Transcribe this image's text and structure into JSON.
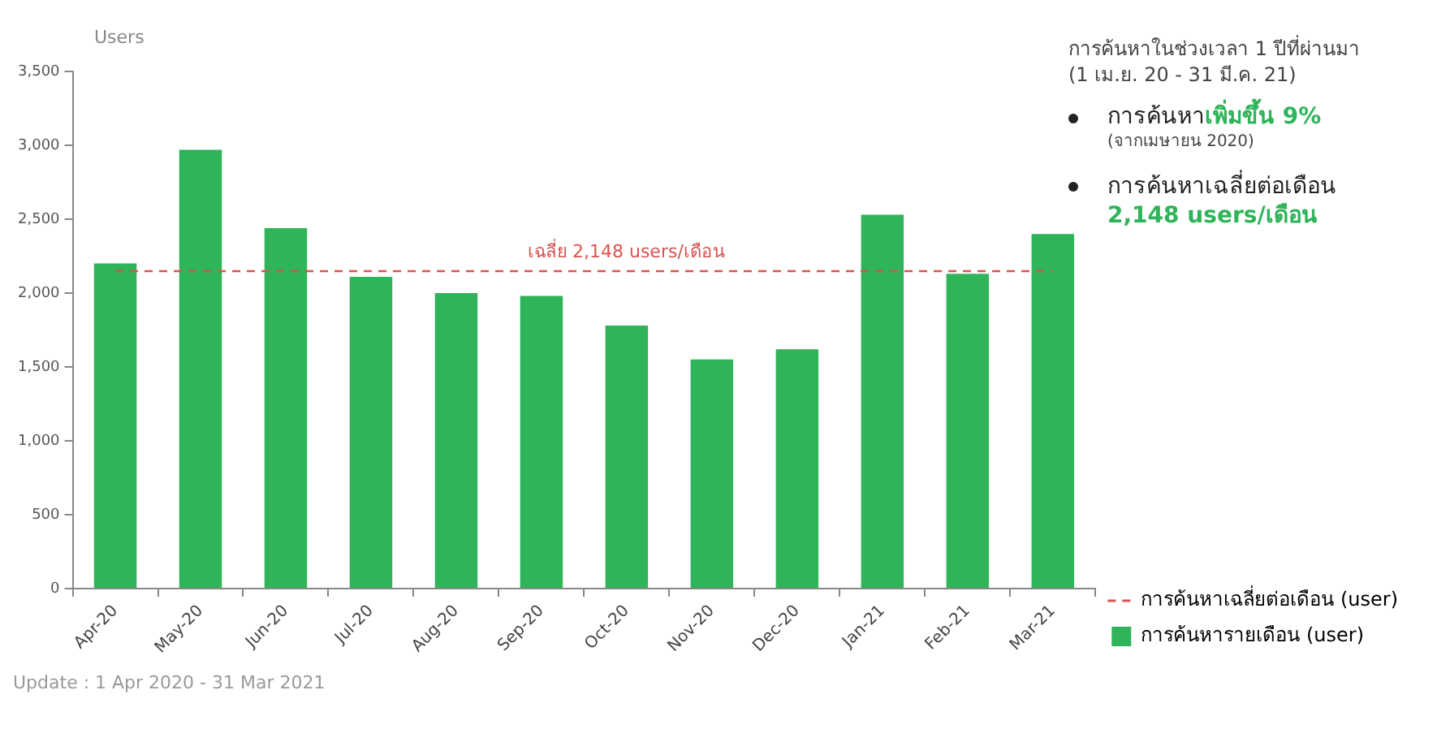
{
  "chart_data": {
    "type": "bar",
    "ylabel": "Users",
    "categories": [
      "Apr-20",
      "May-20",
      "Jun-20",
      "Jul-20",
      "Aug-20",
      "Sep-20",
      "Oct-20",
      "Nov-20",
      "Dec-20",
      "Jan-21",
      "Feb-21",
      "Mar-21"
    ],
    "series": [
      {
        "name": "การค้นหารายเดือน (user)",
        "color": "#2fb45a",
        "values": [
          2200,
          2970,
          2440,
          2110,
          2000,
          1980,
          1780,
          1550,
          1620,
          2530,
          2130,
          2400
        ]
      },
      {
        "type": "line",
        "name": "การค้นหาเฉลี่ยต่อเดือน (user)",
        "color": "#d9534f",
        "line_style": "dashed",
        "marker": "none",
        "values": [
          2148,
          2148,
          2148,
          2148,
          2148,
          2148,
          2148,
          2148,
          2148,
          2148,
          2148,
          2148
        ]
      }
    ],
    "ylim": [
      0,
      3500
    ],
    "yticks": [
      {
        "value": 0,
        "label": "0"
      },
      {
        "value": 500,
        "label": "500"
      },
      {
        "value": 1000,
        "label": "1,000"
      },
      {
        "value": 1500,
        "label": "1,500"
      },
      {
        "value": 2000,
        "label": "2,000"
      },
      {
        "value": 2500,
        "label": "2,500"
      },
      {
        "value": 3000,
        "label": "3,000"
      },
      {
        "value": 3500,
        "label": "3,500"
      }
    ],
    "grid": false,
    "legend": "right",
    "annotations": [
      {
        "text": "เฉลี่ย 2,148 users/เดือน",
        "x": "Oct-20",
        "y": 2148
      },
      "การค้นหาในช่วงเวลา 1 ปีที่ผ่านมา",
      "(1 เม.ย. 20 - 31 มี.ค. 21)",
      "การค้นหา",
      "เพิ่มขึ้น 9%",
      "(จากเมษายน 2020)",
      "การค้นหาเฉลี่ยต่อเดือน",
      "2,148 users/เดือน",
      "Update : 1 Apr 2020 - 31 Mar 2021"
    ]
  }
}
